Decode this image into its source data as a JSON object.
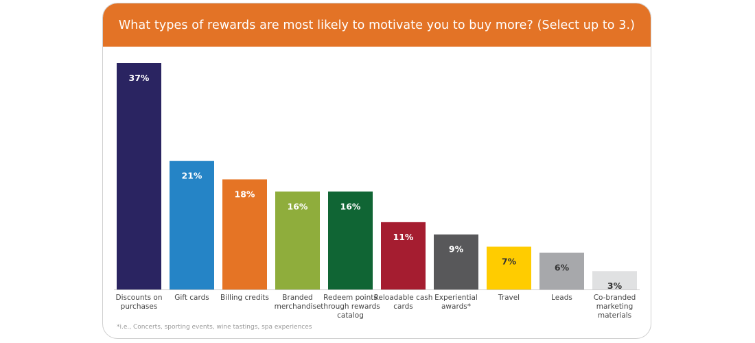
{
  "chart_data": {
    "type": "bar",
    "title": "What types of rewards are most likely to motivate you to buy more? (Select up to 3.)",
    "categories": [
      "Discounts on purchases",
      "Gift cards",
      "Billing credits",
      "Branded merchandise",
      "Redeem points through rewards catalog",
      "Reloadable cash cards",
      "Experiential awards*",
      "Travel",
      "Leads",
      "Co-branded marketing materials"
    ],
    "values": [
      37,
      21,
      18,
      16,
      16,
      11,
      9,
      7,
      6,
      3
    ],
    "value_labels": [
      "37%",
      "21%",
      "18%",
      "16%",
      "16%",
      "11%",
      "9%",
      "7%",
      "6%",
      "3%"
    ],
    "colors": [
      "#2a2461",
      "#2584c6",
      "#e57425",
      "#8fad3c",
      "#106534",
      "#a51d30",
      "#58585a",
      "#ffcc00",
      "#a7a8ab",
      "#e0e1e2"
    ],
    "label_colors": [
      "#ffffff",
      "#ffffff",
      "#ffffff",
      "#ffffff",
      "#ffffff",
      "#ffffff",
      "#ffffff",
      "#333333",
      "#333333",
      "#333333"
    ],
    "unit": "%",
    "ylim": [
      0,
      37
    ],
    "grid": false,
    "footnote": "*i.e., Concerts, sporting events, wine tastings, spa experiences"
  }
}
